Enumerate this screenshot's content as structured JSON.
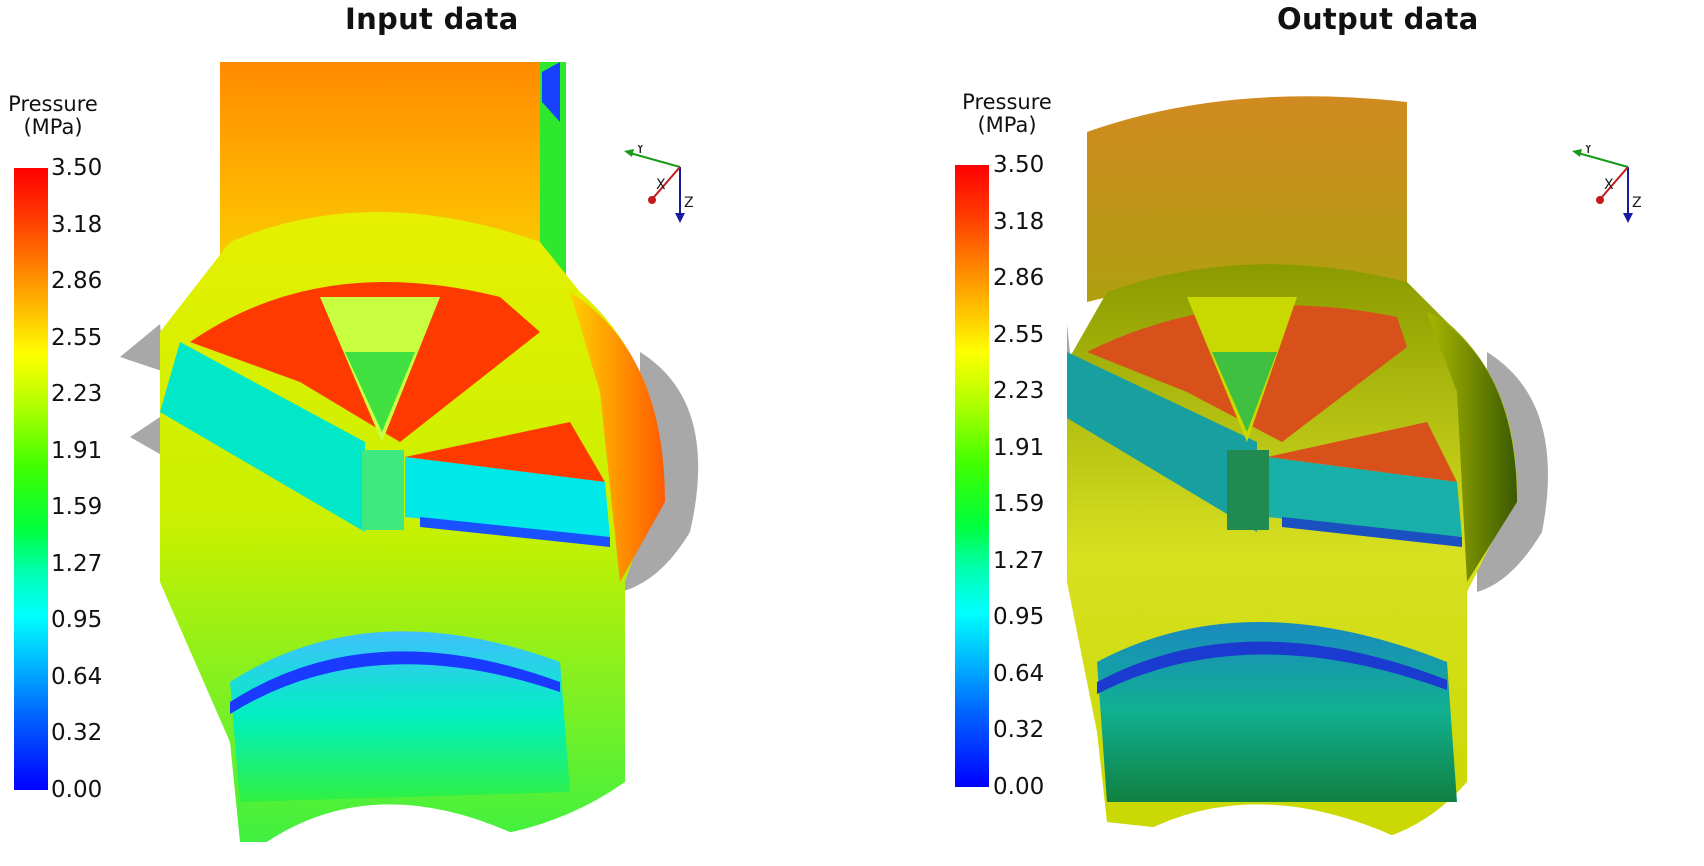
{
  "panels": [
    {
      "title": "Input data",
      "legend": {
        "title_line1": "Pressure",
        "title_line2": "(MPa)"
      },
      "colorbar": {
        "min": 0.0,
        "max": 3.5,
        "ticks": [
          "3.50",
          "3.18",
          "2.86",
          "2.55",
          "2.23",
          "1.91",
          "1.59",
          "1.27",
          "0.95",
          "0.64",
          "0.32",
          "0.00"
        ]
      },
      "axes": {
        "x": "X",
        "y": "Y",
        "z": "Z"
      }
    },
    {
      "title": "Output data",
      "legend": {
        "title_line1": "Pressure",
        "title_line2": "(MPa)"
      },
      "colorbar": {
        "min": 0.0,
        "max": 3.5,
        "ticks": [
          "3.50",
          "3.18",
          "2.86",
          "2.55",
          "2.23",
          "1.91",
          "1.59",
          "1.27",
          "0.95",
          "0.64",
          "0.32",
          "0.00"
        ]
      },
      "axes": {
        "x": "X",
        "y": "Y",
        "z": "Z"
      }
    }
  ],
  "colors": {
    "red": "#ff3a00",
    "yellow": "#e6f000",
    "green": "#2ee82e",
    "cyan": "#00e8e8",
    "blue": "#0000ff",
    "grey": "#a8a8a8",
    "dark_olive": "#5a6a00"
  }
}
